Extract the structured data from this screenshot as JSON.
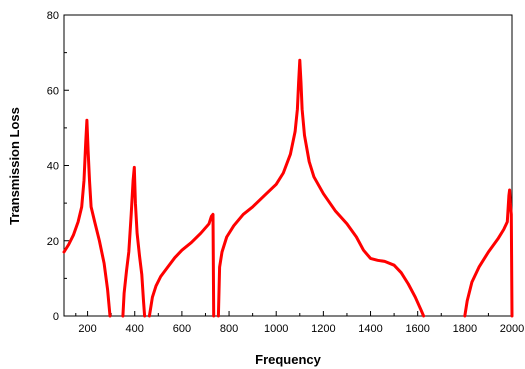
{
  "chart_data": {
    "type": "line",
    "title": "",
    "xlabel": "Frequency",
    "ylabel": "Transmission Loss",
    "xlim": [
      100,
      2000
    ],
    "ylim": [
      0,
      80
    ],
    "x_ticks": [
      200,
      400,
      600,
      800,
      1000,
      1200,
      1400,
      1600,
      1800,
      2000
    ],
    "y_ticks": [
      0,
      20,
      40,
      60,
      80
    ],
    "grid": false,
    "legend": "none",
    "series": [
      {
        "color": "#ff0000",
        "segments": [
          [
            [
              100,
              17
            ],
            [
              120,
              19
            ],
            [
              140,
              21.5
            ],
            [
              160,
              25
            ],
            [
              175,
              29
            ],
            [
              185,
              36
            ],
            [
              192,
              46
            ],
            [
              197,
              52
            ],
            [
              202,
              44
            ],
            [
              208,
              36
            ],
            [
              215,
              29
            ],
            [
              230,
              25
            ],
            [
              250,
              20
            ],
            [
              270,
              14
            ],
            [
              285,
              7
            ],
            [
              295,
              0
            ]
          ],
          [
            [
              350,
              0
            ],
            [
              355,
              6
            ],
            [
              365,
              12
            ],
            [
              375,
              17
            ],
            [
              385,
              27
            ],
            [
              393,
              36
            ],
            [
              398,
              39.5
            ],
            [
              403,
              30
            ],
            [
              410,
              22
            ],
            [
              420,
              16
            ],
            [
              430,
              11
            ],
            [
              437,
              4
            ],
            [
              442,
              0
            ]
          ],
          [
            [
              462,
              0
            ],
            [
              475,
              5
            ],
            [
              490,
              8
            ],
            [
              510,
              10.5
            ],
            [
              540,
              13
            ],
            [
              570,
              15.5
            ],
            [
              600,
              17.5
            ],
            [
              640,
              19.5
            ],
            [
              680,
              22
            ],
            [
              715,
              24.5
            ],
            [
              725,
              26.5
            ],
            [
              732,
              27
            ],
            [
              735,
              0
            ]
          ],
          [
            [
              755,
              0
            ],
            [
              760,
              13
            ],
            [
              770,
              17
            ],
            [
              790,
              21
            ],
            [
              820,
              24
            ],
            [
              860,
              27
            ],
            [
              900,
              29
            ],
            [
              950,
              32
            ],
            [
              1000,
              35
            ],
            [
              1030,
              38
            ],
            [
              1060,
              43
            ],
            [
              1080,
              49
            ],
            [
              1090,
              55
            ],
            [
              1095,
              62
            ],
            [
              1100,
              68
            ],
            [
              1105,
              62
            ],
            [
              1110,
              55
            ],
            [
              1120,
              48
            ],
            [
              1140,
              41
            ],
            [
              1160,
              37
            ],
            [
              1200,
              32.5
            ],
            [
              1250,
              28
            ],
            [
              1300,
              24.5
            ],
            [
              1340,
              21
            ],
            [
              1370,
              17.5
            ],
            [
              1400,
              15.3
            ],
            [
              1430,
              14.8
            ],
            [
              1460,
              14.5
            ],
            [
              1500,
              13.5
            ],
            [
              1530,
              11.5
            ],
            [
              1560,
              8.5
            ],
            [
              1590,
              5
            ],
            [
              1615,
              1.5
            ],
            [
              1625,
              0
            ]
          ],
          [
            [
              1800,
              0
            ],
            [
              1810,
              4
            ],
            [
              1830,
              9
            ],
            [
              1860,
              13
            ],
            [
              1900,
              17
            ],
            [
              1940,
              20.5
            ],
            [
              1965,
              23
            ],
            [
              1980,
              25
            ],
            [
              1987,
              32
            ],
            [
              1990,
              33.5
            ],
            [
              1993,
              30
            ],
            [
              1997,
              27
            ],
            [
              2000,
              0
            ]
          ]
        ]
      }
    ]
  }
}
